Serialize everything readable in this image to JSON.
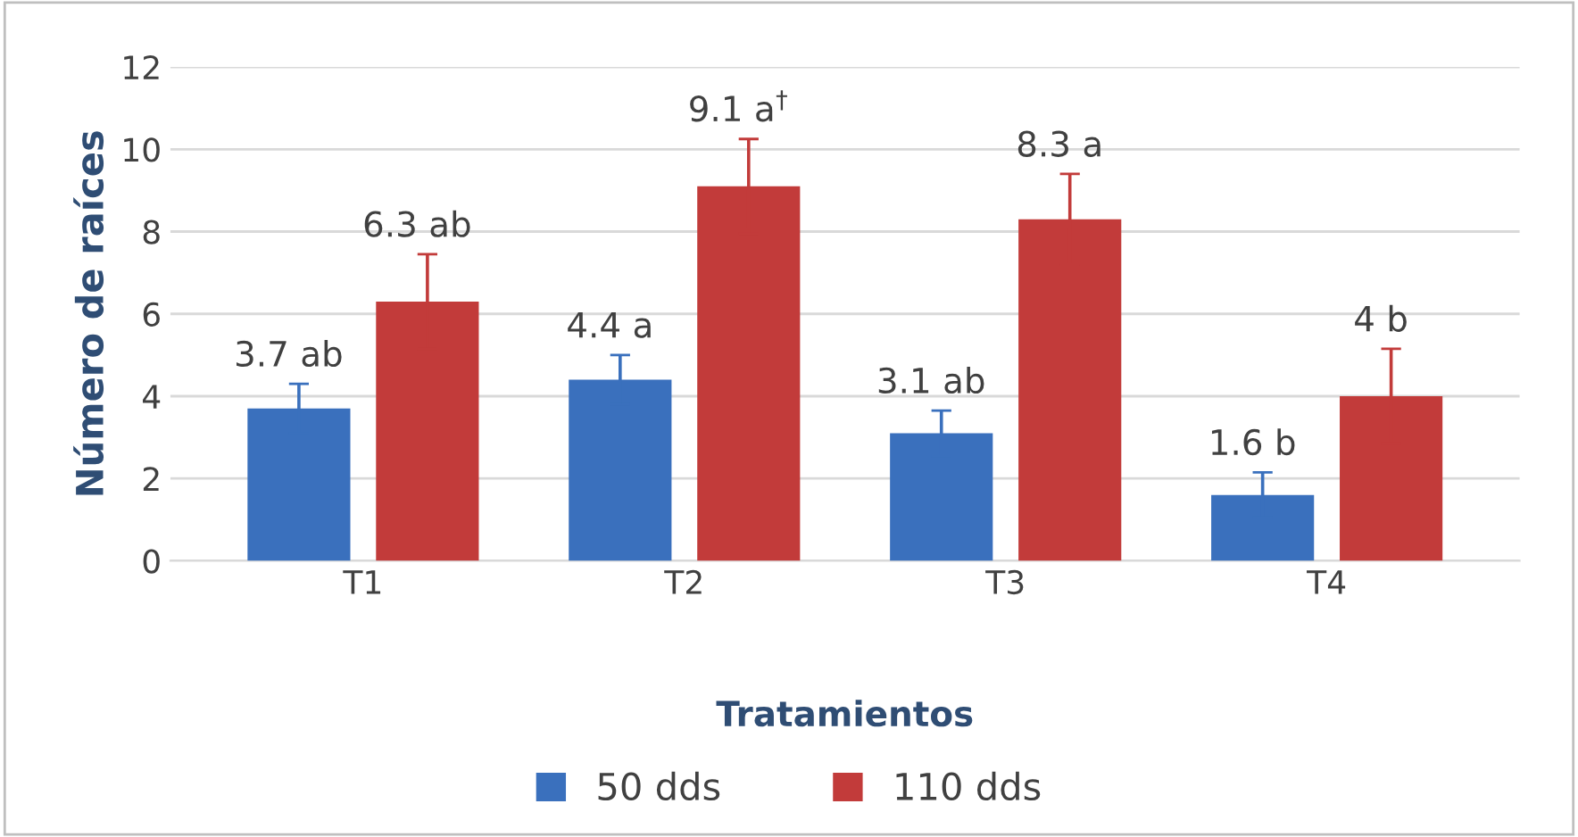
{
  "chart_data": {
    "type": "bar",
    "xlabel": "Tratamientos",
    "ylabel": "Número de raíces",
    "categories": [
      "T1",
      "T2",
      "T3",
      "T4"
    ],
    "series": [
      {
        "name": "50 dds",
        "color": "#3a70bd",
        "values": [
          3.7,
          4.4,
          3.1,
          1.6
        ],
        "errors": [
          0.6,
          0.6,
          0.55,
          0.55
        ],
        "value_labels": [
          "3.7 ab",
          "4.4 a",
          "3.1 ab",
          "1.6 b"
        ]
      },
      {
        "name": "110 dds",
        "color": "#c23b3a",
        "values": [
          6.3,
          9.1,
          8.3,
          4
        ],
        "errors": [
          1.15,
          1.15,
          1.1,
          1.15
        ],
        "value_labels": [
          "6.3 ab",
          "9.1 a$^{†}$",
          "8.3 a",
          "4 b"
        ]
      }
    ],
    "ylim": [
      0,
      12
    ],
    "yticks": [
      0,
      2,
      4,
      6,
      8,
      10,
      12
    ],
    "grid": "y",
    "legend": "bottom"
  }
}
